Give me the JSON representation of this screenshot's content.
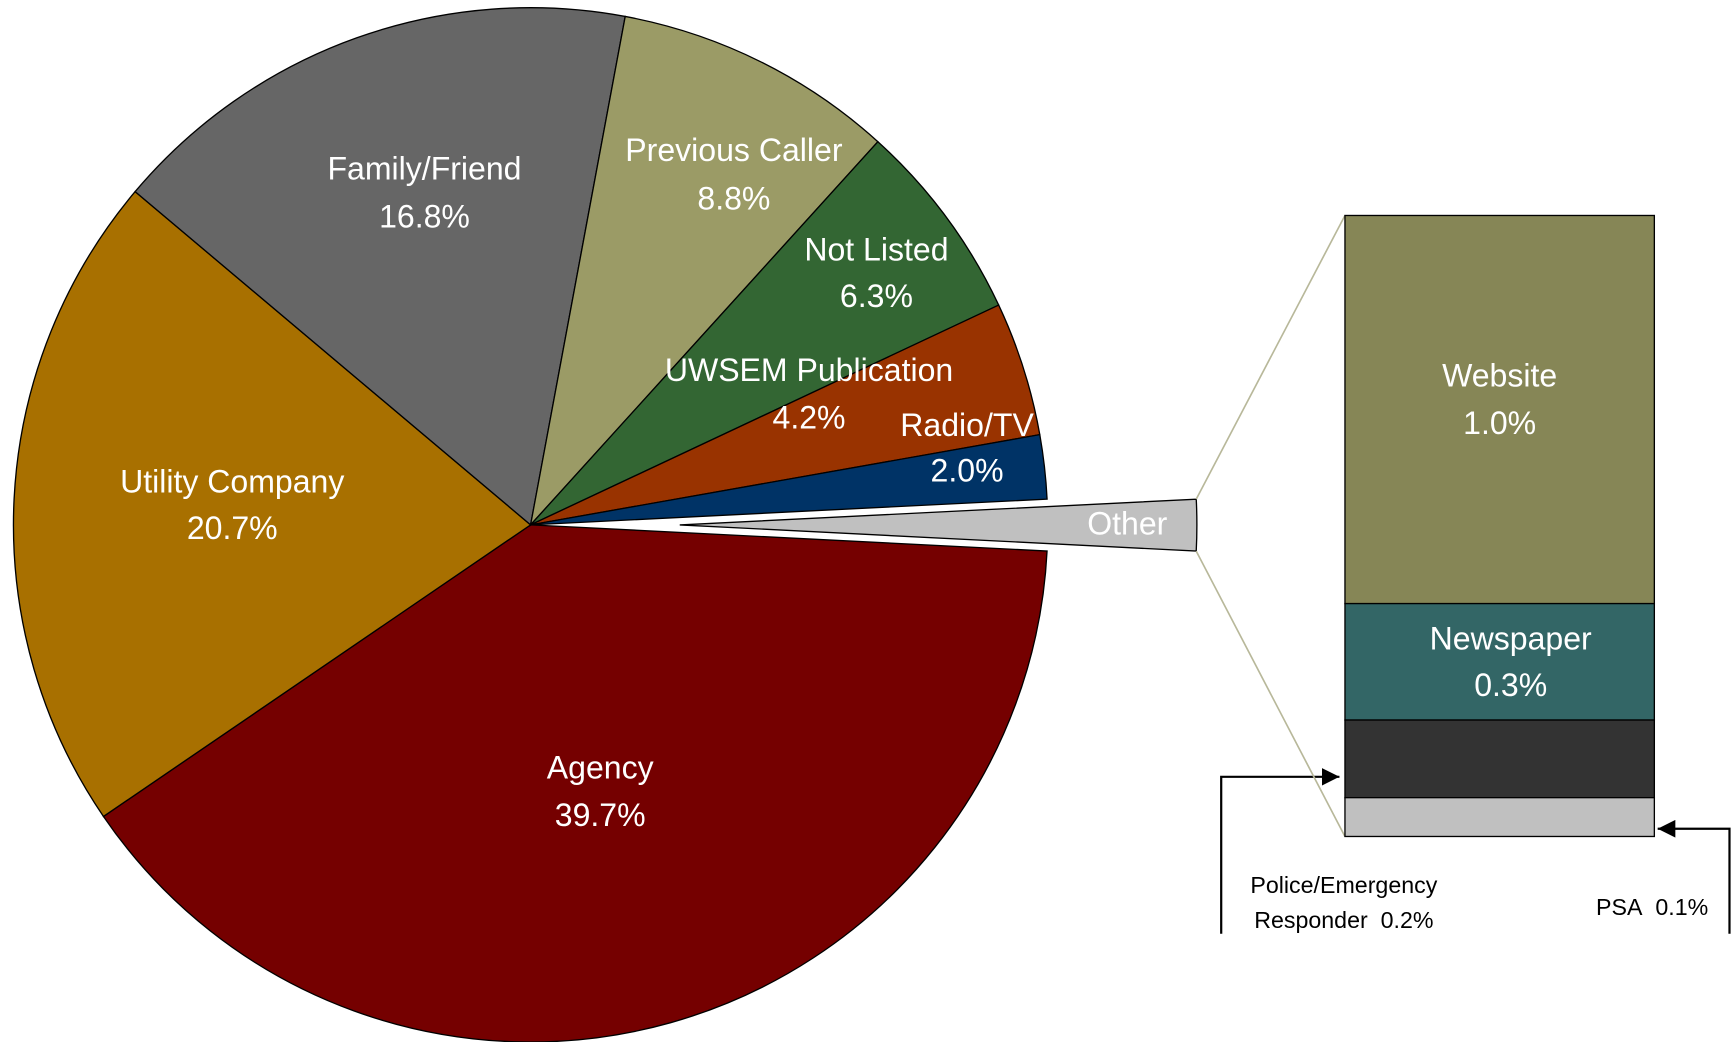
{
  "chart_data": {
    "type": "pie-of-bar",
    "categories": [
      "Agency",
      "Utility Company",
      "Family/Friend",
      "Previous Caller",
      "Not Listed",
      "UWSEM Publication",
      "Radio/TV"
    ],
    "values": [
      39.7,
      20.7,
      16.8,
      8.8,
      6.3,
      4.2,
      2.0
    ],
    "value_labels": [
      "39.7%",
      "20.7%",
      "16.8%",
      "8.8%",
      "6.3%",
      "4.2%",
      "2.0%"
    ],
    "colors": [
      "#750000",
      "#a87000",
      "#666666",
      "#9b9b66",
      "#336633",
      "#993300",
      "#003366"
    ],
    "other": {
      "label": "Other",
      "color": "#c0c0c0",
      "categories": [
        "Website",
        "Newspaper",
        "Police/Emergency Responder",
        "PSA"
      ],
      "values": [
        1.0,
        0.3,
        0.2,
        0.1
      ],
      "value_labels": [
        "1.0%",
        "0.3%",
        "0.2%",
        "0.1%"
      ],
      "colors": [
        "#868656",
        "#336666",
        "#333333",
        "#c0c0c0"
      ]
    }
  }
}
